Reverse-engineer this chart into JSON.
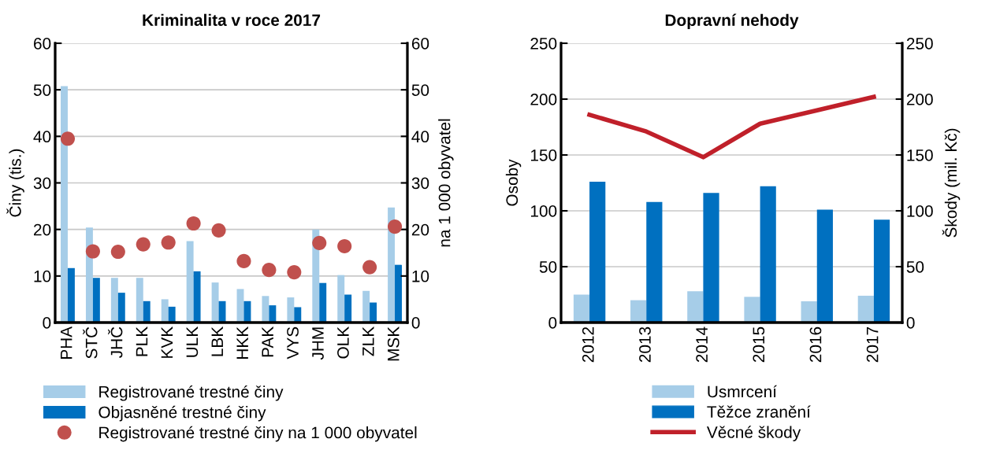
{
  "chart_data": [
    {
      "type": "bar",
      "title": "Kriminalita v roce 2017",
      "ylabel": "Činy (tis.)",
      "y2label": "na 1 000 obyvatel",
      "categories": [
        "PHA",
        "STČ",
        "JHČ",
        "PLK",
        "KVK",
        "ULK",
        "LBK",
        "HKK",
        "PAK",
        "VYS",
        "JHM",
        "OLK",
        "ZLK",
        "MSK"
      ],
      "series": [
        {
          "name": "Registrované trestné činy",
          "color": "#a6cde8",
          "values": [
            50.8,
            20.4,
            9.6,
            9.6,
            5.0,
            17.5,
            8.6,
            7.2,
            5.7,
            5.4,
            20.0,
            10.2,
            6.8,
            24.7
          ]
        },
        {
          "name": "Objasněné trestné činy",
          "color": "#0070c0",
          "values": [
            11.7,
            9.6,
            6.4,
            4.6,
            3.4,
            11.0,
            4.6,
            4.6,
            3.7,
            3.3,
            8.5,
            6.0,
            4.3,
            12.4
          ]
        },
        {
          "name": "Registrované trestné činy na 1 000 obyvatel",
          "type": "scatter",
          "axis": "y2",
          "marker": "circle",
          "color": "#c0504d",
          "values": [
            39.5,
            15.3,
            15.2,
            16.8,
            17.2,
            21.3,
            19.8,
            13.2,
            11.3,
            10.8,
            17.1,
            16.4,
            11.9,
            20.6
          ]
        }
      ],
      "ylim": [
        0,
        60
      ],
      "yticks": [
        0,
        10,
        20,
        30,
        40,
        50,
        60
      ],
      "y2lim": [
        0,
        60
      ],
      "y2ticks": [
        0,
        10,
        20,
        30,
        40,
        50,
        60
      ],
      "grid": "y",
      "legend": "bottom"
    },
    {
      "type": "bar",
      "title": "Dopravní nehody",
      "ylabel": "Osoby",
      "y2label": "Škody (mil. Kč)",
      "categories": [
        "2012",
        "2013",
        "2014",
        "2015",
        "2016",
        "2017"
      ],
      "series": [
        {
          "name": "Usmrcení",
          "color": "#a6cde8",
          "values": [
            25,
            20,
            28,
            23,
            19,
            24
          ]
        },
        {
          "name": "Těžce zranění",
          "color": "#0070c0",
          "values": [
            126,
            108,
            116,
            122,
            101,
            92
          ]
        },
        {
          "name": "Věcné škody",
          "type": "line",
          "axis": "y2",
          "line_style": "solid",
          "color": "#c0202a",
          "values": [
            186,
            171,
            148,
            178,
            190,
            202
          ]
        }
      ],
      "ylim": [
        0,
        250
      ],
      "yticks": [
        0,
        50,
        100,
        150,
        200,
        250
      ],
      "y2lim": [
        0,
        250
      ],
      "y2ticks": [
        0,
        50,
        100,
        150,
        200,
        250
      ],
      "grid": "y",
      "legend": "bottom"
    }
  ]
}
